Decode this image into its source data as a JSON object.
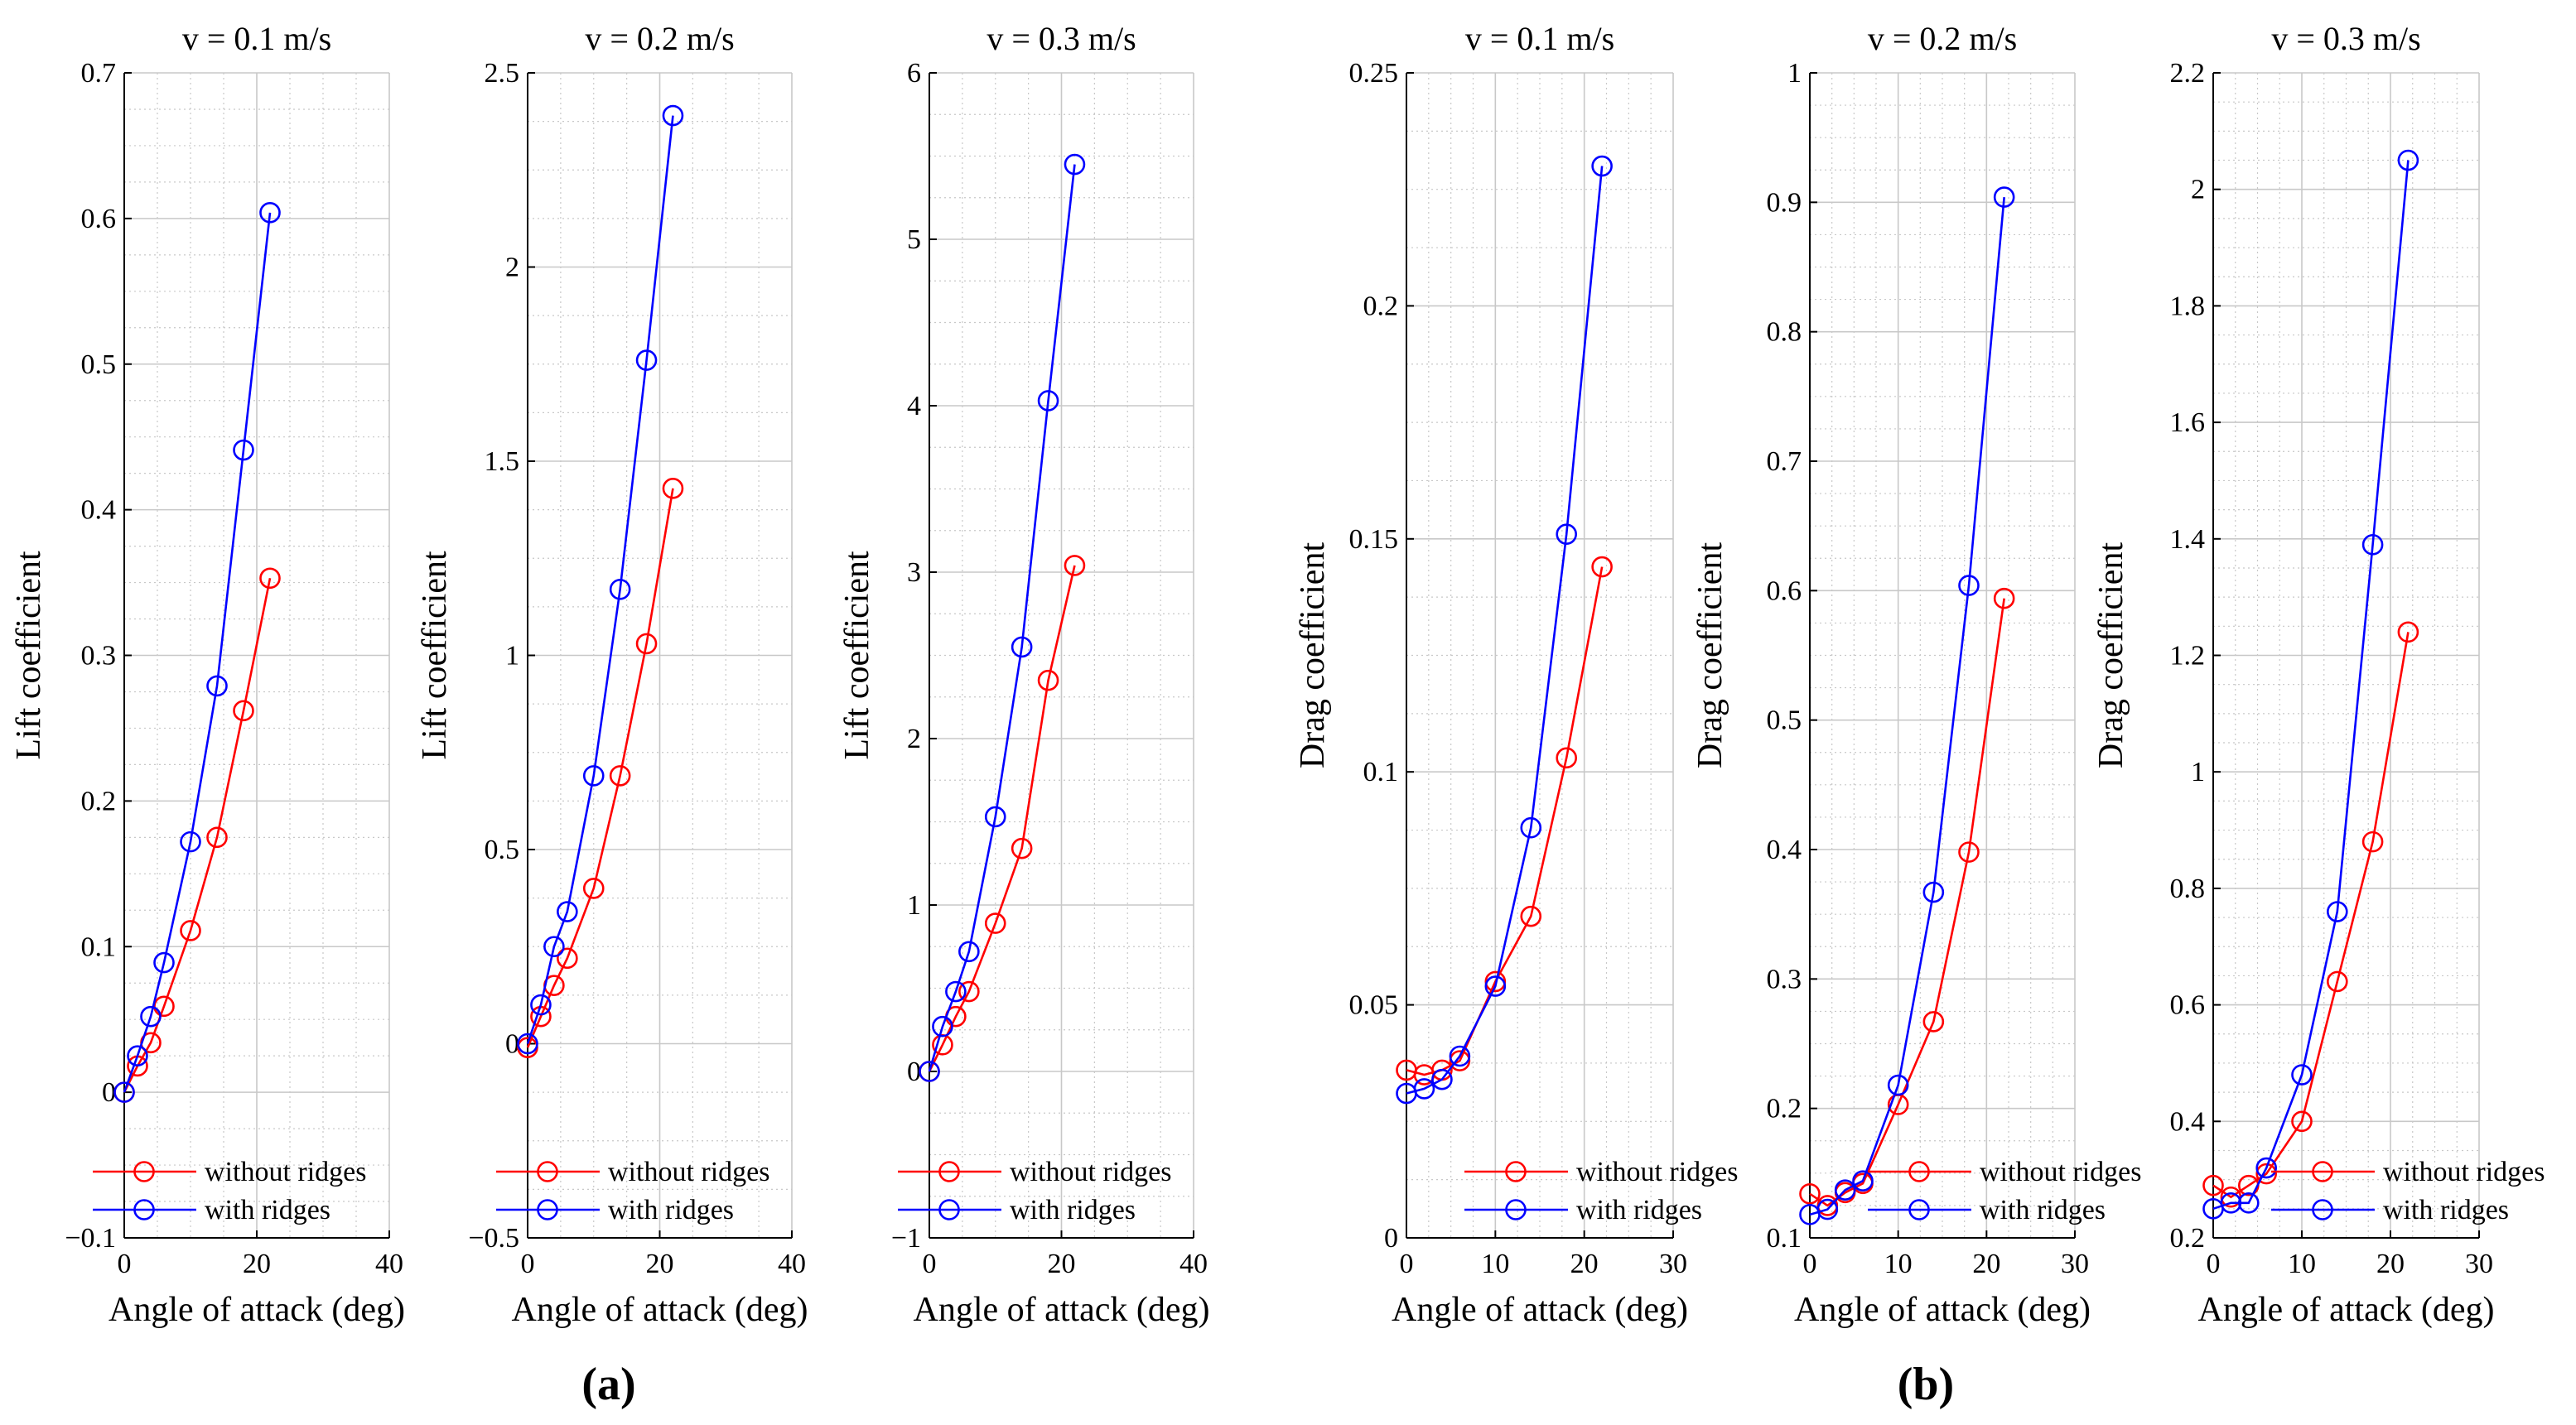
{
  "colors": {
    "without": "#ff0000",
    "with": "#0000ff",
    "grid": "#c8c8c8",
    "axis": "#000000"
  },
  "panel_labels": [
    "(a)",
    "(b)"
  ],
  "chart_data": [
    {
      "type": "line",
      "title": "v = 0.1 m/s",
      "xlabel": "Angle of attack (deg)",
      "ylabel": "Lift coefficient",
      "xlim": [
        0,
        40
      ],
      "ylim": [
        -0.1,
        0.7
      ],
      "xticks": [
        0,
        20,
        40
      ],
      "xtick_labels": [
        "0",
        "20",
        "40"
      ],
      "yticks": [
        -0.1,
        0,
        0.1,
        0.2,
        0.3,
        0.4,
        0.5,
        0.6,
        0.7
      ],
      "ytick_labels": [
        "−0.1",
        "0",
        "0.1",
        "0.2",
        "0.3",
        "0.4",
        "0.5",
        "0.6",
        "0.7"
      ],
      "grid": true,
      "legend_position": "bottom-left",
      "series": [
        {
          "name": "without ridges",
          "x": [
            0,
            2,
            4,
            6,
            10,
            14,
            18,
            22
          ],
          "y": [
            0.0,
            0.018,
            0.034,
            0.059,
            0.111,
            0.175,
            0.262,
            0.353
          ]
        },
        {
          "name": "with ridges",
          "x": [
            0,
            2,
            4,
            6,
            10,
            14,
            18,
            22
          ],
          "y": [
            0.0,
            0.025,
            0.052,
            0.089,
            0.172,
            0.279,
            0.441,
            0.604
          ]
        }
      ]
    },
    {
      "type": "line",
      "title": "v = 0.2 m/s",
      "xlabel": "Angle of attack (deg)",
      "ylabel": "Lift coefficient",
      "xlim": [
        0,
        40
      ],
      "ylim": [
        -0.5,
        2.5
      ],
      "xticks": [
        0,
        20,
        40
      ],
      "xtick_labels": [
        "0",
        "20",
        "40"
      ],
      "yticks": [
        -0.5,
        0,
        0.5,
        1,
        1.5,
        2,
        2.5
      ],
      "ytick_labels": [
        "−0.5",
        "0",
        "0.5",
        "1",
        "1.5",
        "2",
        "2.5"
      ],
      "grid": true,
      "legend_position": "bottom-left",
      "series": [
        {
          "name": "without ridges",
          "x": [
            0,
            2,
            4,
            6,
            10,
            14,
            18,
            22
          ],
          "y": [
            -0.01,
            0.07,
            0.15,
            0.22,
            0.4,
            0.69,
            1.03,
            1.43
          ]
        },
        {
          "name": "with ridges",
          "x": [
            0,
            2,
            4,
            6,
            10,
            14,
            18,
            22
          ],
          "y": [
            0.0,
            0.1,
            0.25,
            0.34,
            0.69,
            1.17,
            1.76,
            2.39
          ]
        }
      ]
    },
    {
      "type": "line",
      "title": "v = 0.3 m/s",
      "xlabel": "Angle of attack (deg)",
      "ylabel": "Lift coefficient",
      "xlim": [
        0,
        40
      ],
      "ylim": [
        -1,
        6
      ],
      "xticks": [
        0,
        20,
        40
      ],
      "xtick_labels": [
        "0",
        "20",
        "40"
      ],
      "yticks": [
        -1,
        0,
        1,
        2,
        3,
        4,
        5,
        6
      ],
      "ytick_labels": [
        "−1",
        "0",
        "1",
        "2",
        "3",
        "4",
        "5",
        "6"
      ],
      "grid": true,
      "legend_position": "bottom-left",
      "series": [
        {
          "name": "without ridges",
          "x": [
            0,
            2,
            4,
            6,
            10,
            14,
            18,
            22
          ],
          "y": [
            0.0,
            0.16,
            0.33,
            0.48,
            0.89,
            1.34,
            2.35,
            3.04
          ]
        },
        {
          "name": "with ridges",
          "x": [
            0,
            2,
            4,
            6,
            10,
            14,
            18,
            22
          ],
          "y": [
            0.0,
            0.27,
            0.48,
            0.72,
            1.53,
            2.55,
            4.03,
            5.45
          ]
        }
      ]
    },
    {
      "type": "line",
      "title": "v = 0.1 m/s",
      "xlabel": "Angle of attack (deg)",
      "ylabel": "Drag coefficient",
      "xlim": [
        0,
        30
      ],
      "ylim": [
        0,
        0.25
      ],
      "xticks": [
        0,
        10,
        20,
        30
      ],
      "xtick_labels": [
        "0",
        "10",
        "20",
        "30"
      ],
      "yticks": [
        0,
        0.05,
        0.1,
        0.15,
        0.2,
        0.25
      ],
      "ytick_labels": [
        "0",
        "0.05",
        "0.1",
        "0.15",
        "0.2",
        "0.25"
      ],
      "grid": true,
      "legend_position": "bottom-right",
      "series": [
        {
          "name": "without ridges",
          "x": [
            0,
            2,
            4,
            6,
            10,
            14,
            18,
            22
          ],
          "y": [
            0.036,
            0.035,
            0.036,
            0.038,
            0.055,
            0.069,
            0.103,
            0.144
          ]
        },
        {
          "name": "with ridges",
          "x": [
            0,
            2,
            4,
            6,
            10,
            14,
            18,
            22
          ],
          "y": [
            0.031,
            0.032,
            0.034,
            0.039,
            0.054,
            0.088,
            0.151,
            0.23
          ]
        }
      ]
    },
    {
      "type": "line",
      "title": "v = 0.2 m/s",
      "xlabel": "Angle of attack (deg)",
      "ylabel": "Drag coefficient",
      "xlim": [
        0,
        30
      ],
      "ylim": [
        0.1,
        1
      ],
      "xticks": [
        0,
        10,
        20,
        30
      ],
      "xtick_labels": [
        "0",
        "10",
        "20",
        "30"
      ],
      "yticks": [
        0.1,
        0.2,
        0.3,
        0.4,
        0.5,
        0.6,
        0.7,
        0.8,
        0.9,
        1
      ],
      "ytick_labels": [
        "0.1",
        "0.2",
        "0.3",
        "0.4",
        "0.5",
        "0.6",
        "0.7",
        "0.8",
        "0.9",
        "1"
      ],
      "grid": true,
      "legend_position": "bottom-right",
      "series": [
        {
          "name": "without ridges",
          "x": [
            0,
            2,
            4,
            6,
            10,
            14,
            18,
            22
          ],
          "y": [
            0.134,
            0.125,
            0.135,
            0.142,
            0.203,
            0.267,
            0.398,
            0.594
          ]
        },
        {
          "name": "with ridges",
          "x": [
            0,
            2,
            4,
            6,
            10,
            14,
            18,
            22
          ],
          "y": [
            0.118,
            0.122,
            0.137,
            0.144,
            0.218,
            0.367,
            0.604,
            0.904
          ]
        }
      ]
    },
    {
      "type": "line",
      "title": "v = 0.3 m/s",
      "xlabel": "Angle of attack (deg)",
      "ylabel": "Drag coefficient",
      "xlim": [
        0,
        30
      ],
      "ylim": [
        0.2,
        2.2
      ],
      "xticks": [
        0,
        10,
        20,
        30
      ],
      "xtick_labels": [
        "0",
        "10",
        "20",
        "30"
      ],
      "yticks": [
        0.2,
        0.4,
        0.6,
        0.8,
        1,
        1.2,
        1.4,
        1.6,
        1.8,
        2,
        2.2
      ],
      "ytick_labels": [
        "0.2",
        "0.4",
        "0.6",
        "0.8",
        "1",
        "1.2",
        "1.4",
        "1.6",
        "1.8",
        "2",
        "2.2"
      ],
      "grid": true,
      "legend_position": "bottom-right",
      "series": [
        {
          "name": "without ridges",
          "x": [
            0,
            2,
            4,
            6,
            10,
            14,
            18,
            22
          ],
          "y": [
            0.29,
            0.27,
            0.29,
            0.31,
            0.4,
            0.64,
            0.88,
            1.24
          ]
        },
        {
          "name": "with ridges",
          "x": [
            0,
            2,
            4,
            6,
            10,
            14,
            18,
            22
          ],
          "y": [
            0.25,
            0.26,
            0.26,
            0.32,
            0.48,
            0.76,
            1.39,
            2.05
          ]
        }
      ]
    }
  ]
}
